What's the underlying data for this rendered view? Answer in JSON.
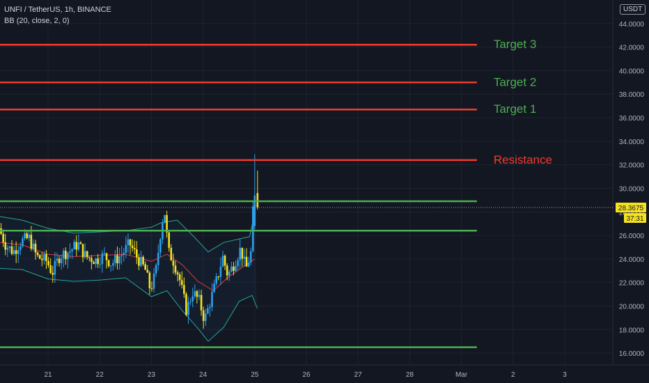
{
  "header": {
    "symbol": "UNFI / TetherUS, 1h, BINANCE",
    "indicator": "BB (20, close, 2, 0)",
    "currency": "USDT"
  },
  "price": {
    "current": "28.3675",
    "countdown": "37:31"
  },
  "colors": {
    "background": "#131722",
    "grid": "#1f2330",
    "up": "#2f9ee8",
    "down": "#f5e11f",
    "bb_band": "#26a69a",
    "bb_basis": "#e53935",
    "resistance_line": "#f23c2e",
    "support_line": "#4caf50",
    "target_label": "#4caf50",
    "resistance_label": "#f23c2e"
  },
  "chart_data": {
    "type": "candlestick",
    "title": "UNFI / TetherUS, 1h, BINANCE",
    "ylim": [
      15.0,
      46.0
    ],
    "yticks": [
      "16.0000",
      "18.0000",
      "20.0000",
      "22.0000",
      "24.0000",
      "26.0000",
      "28.0000",
      "30.0000",
      "32.0000",
      "34.0000",
      "36.0000",
      "38.0000",
      "40.0000",
      "42.0000",
      "44.0000"
    ],
    "xticks": [
      {
        "label": "21",
        "day": 1
      },
      {
        "label": "22",
        "day": 2
      },
      {
        "label": "23",
        "day": 3
      },
      {
        "label": "24",
        "day": 4
      },
      {
        "label": "25",
        "day": 5
      },
      {
        "label": "26",
        "day": 6
      },
      {
        "label": "27",
        "day": 7
      },
      {
        "label": "28",
        "day": 8
      },
      {
        "label": "Mar",
        "day": 9
      },
      {
        "label": "2",
        "day": 10
      },
      {
        "label": "3",
        "day": 11
      }
    ],
    "x_range_days": [
      0.07,
      11.93
    ],
    "last_candle_day": 5.0,
    "price_path": [
      [
        0.07,
        26.6
      ],
      [
        0.2,
        25.2
      ],
      [
        0.35,
        24.6
      ],
      [
        0.5,
        25.5
      ],
      [
        0.65,
        25.8
      ],
      [
        0.8,
        24.2
      ],
      [
        1.0,
        23.8
      ],
      [
        1.1,
        22.8
      ],
      [
        1.25,
        24.3
      ],
      [
        1.45,
        24.7
      ],
      [
        1.6,
        25.3
      ],
      [
        1.75,
        24.2
      ],
      [
        1.95,
        23.9
      ],
      [
        2.1,
        24.3
      ],
      [
        2.25,
        23.6
      ],
      [
        2.45,
        24.4
      ],
      [
        2.6,
        25.3
      ],
      [
        2.75,
        24.1
      ],
      [
        2.9,
        23.1
      ],
      [
        3.0,
        21.4
      ],
      [
        3.1,
        22.7
      ],
      [
        3.2,
        26.3
      ],
      [
        3.27,
        28.3
      ],
      [
        3.35,
        24.6
      ],
      [
        3.45,
        23.8
      ],
      [
        3.55,
        22.6
      ],
      [
        3.7,
        19.6
      ],
      [
        3.82,
        21.2
      ],
      [
        3.95,
        20.4
      ],
      [
        4.05,
        18.8
      ],
      [
        4.18,
        20.7
      ],
      [
        4.3,
        22.4
      ],
      [
        4.4,
        24.2
      ],
      [
        4.5,
        22.6
      ],
      [
        4.62,
        23.6
      ],
      [
        4.75,
        24.9
      ],
      [
        4.85,
        23.1
      ],
      [
        4.95,
        24.6
      ],
      [
        5.0,
        29.2
      ],
      [
        5.02,
        28.4
      ]
    ],
    "bollinger": {
      "upper": [
        [
          0.07,
          27.6
        ],
        [
          0.5,
          27.3
        ],
        [
          1.0,
          26.6
        ],
        [
          1.5,
          26.2
        ],
        [
          2.0,
          26.3
        ],
        [
          2.5,
          26.4
        ],
        [
          3.0,
          26.7
        ],
        [
          3.2,
          27.1
        ],
        [
          3.5,
          27.3
        ],
        [
          3.8,
          26.0
        ],
        [
          4.1,
          24.6
        ],
        [
          4.4,
          25.4
        ],
        [
          4.7,
          25.7
        ],
        [
          4.9,
          25.9
        ],
        [
          5.0,
          27.9
        ]
      ],
      "basis": [
        [
          0.07,
          25.4
        ],
        [
          0.5,
          25.2
        ],
        [
          1.0,
          24.4
        ],
        [
          1.5,
          24.2
        ],
        [
          2.0,
          24.3
        ],
        [
          2.5,
          24.4
        ],
        [
          3.0,
          23.8
        ],
        [
          3.3,
          24.4
        ],
        [
          3.6,
          23.5
        ],
        [
          3.9,
          22.1
        ],
        [
          4.2,
          21.3
        ],
        [
          4.5,
          22.5
        ],
        [
          4.8,
          23.4
        ],
        [
          5.0,
          24.0
        ]
      ],
      "lower": [
        [
          0.07,
          23.2
        ],
        [
          0.5,
          23.1
        ],
        [
          1.0,
          22.3
        ],
        [
          1.5,
          22.1
        ],
        [
          2.0,
          22.2
        ],
        [
          2.5,
          22.4
        ],
        [
          3.0,
          20.8
        ],
        [
          3.3,
          21.3
        ],
        [
          3.6,
          19.6
        ],
        [
          3.9,
          18.1
        ],
        [
          4.1,
          17.0
        ],
        [
          4.4,
          18.2
        ],
        [
          4.7,
          20.4
        ],
        [
          4.95,
          20.9
        ],
        [
          5.05,
          19.8
        ]
      ]
    },
    "horizontal_lines": [
      {
        "price": 42.2,
        "role": "resistance",
        "label": "Target 3"
      },
      {
        "price": 39.0,
        "role": "resistance",
        "label": "Target 2"
      },
      {
        "price": 36.7,
        "role": "resistance",
        "label": "Target 1"
      },
      {
        "price": 32.4,
        "role": "resistance",
        "label": "Resistance"
      },
      {
        "price": 28.9,
        "role": "support",
        "label": ""
      },
      {
        "price": 26.4,
        "role": "support",
        "label": ""
      },
      {
        "price": 16.5,
        "role": "support",
        "label": ""
      }
    ],
    "horizontal_lines_end_day": 9.3,
    "current_price": 28.3675
  }
}
